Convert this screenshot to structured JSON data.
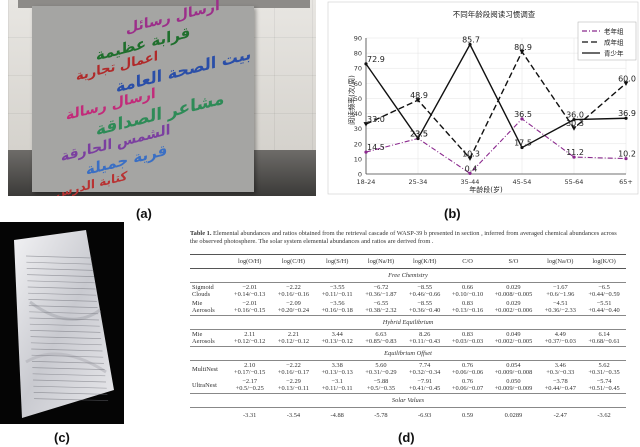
{
  "captions": {
    "a": "(a)",
    "b": "(b)",
    "c": "(c)",
    "d": "(d)"
  },
  "panel_a": {
    "lines": [
      {
        "text": "ارسال رسائل",
        "color": "#9c2f8a"
      },
      {
        "text": "قرابة عظيمة",
        "color": "#1f6f2d"
      },
      {
        "text": "اعمال تجارية",
        "color": "#b02a2a"
      },
      {
        "text": "بيت الصحة العامة",
        "color": "#2a4ea8"
      },
      {
        "text": "ارسال رسالة",
        "color": "#c22b7a"
      },
      {
        "text": "مشاعر الصداقة",
        "color": "#2e8b57"
      },
      {
        "text": "الشمس الحارقة",
        "color": "#7b3fa0"
      },
      {
        "text": "قرية جميلة",
        "color": "#3a6fc4"
      },
      {
        "text": "كتابة الدرس",
        "color": "#b83232"
      }
    ]
  },
  "chart_data": {
    "type": "line",
    "title": "不同年龄段阅读习惯调查",
    "xlabel": "年龄段(岁)",
    "ylabel": "阅读频率(次/周)",
    "categories": [
      "18-24",
      "25-34",
      "35-44",
      "45-54",
      "55-64",
      "65+"
    ],
    "ylim": [
      0,
      90
    ],
    "yticks": [
      0,
      10,
      20,
      30,
      40,
      50,
      60,
      70,
      80,
      90
    ],
    "series": [
      {
        "name": "老年组",
        "style": "dashdot",
        "color": "#8b2a8e",
        "values": [
          14.5,
          23.5,
          0.4,
          36.5,
          11.2,
          10.2
        ]
      },
      {
        "name": "成年组",
        "style": "dashed",
        "color": "#111111",
        "values": [
          33.0,
          48.9,
          10.3,
          80.9,
          30.3,
          60.0
        ]
      },
      {
        "name": "青少年",
        "style": "solid",
        "color": "#111111",
        "values": [
          72.9,
          23.5,
          85.7,
          17.5,
          36.0,
          36.9
        ]
      }
    ],
    "data_labels": [
      "72.9",
      "48.9",
      "85.7",
      "80.9",
      "60.0",
      "33.0",
      "23.5",
      "36.5",
      "36.0",
      "36.9",
      "30.3",
      "14.5",
      "10.3",
      "0.4",
      "11.2",
      "10.2"
    ],
    "legend_position": "top-right"
  },
  "panel_d": {
    "caption_bold": "Table 1.",
    "caption_text": "Elemental abundances and ratios obtained from the retrieval cascade of WASP-39 b presented in section , inferred from averaged chemical abundances across the observed photosphere. The solar system elemental abundances and ratios are derived from .",
    "headers": [
      "",
      "log(O/H)",
      "log(C/H)",
      "log(S/H)",
      "log(Na/H)",
      "log(K/H)",
      "C/O",
      "S/O",
      "log(Na/O)",
      "log(K/O)"
    ],
    "sections": [
      {
        "title": "Free Chemistry",
        "rows": [
          [
            "Sigmoid Clouds",
            "−2.01 +0.14/−0.13",
            "−2.22 +0.16/−0.16",
            "−3.55 +0.11/−0.11",
            "−6.72 +0.36/−1.87",
            "−8.55 +0.46/−0.66",
            "0.66 +0.10/−0.10",
            "0.029 +0.008/−0.005",
            "−1.67 +0.6/−1.96",
            "−6.5 +0.44/−0.59"
          ],
          [
            "Mie Aerosols",
            "−2.01 +0.16/−0.15",
            "−2.09 +0.20/−0.24",
            "−3.56 +0.16/−0.18",
            "−6.55 +0.38/−2.32",
            "−8.55 +0.36/−0.40",
            "0.83 +0.13/−0.16",
            "0.029 +0.002/−0.006",
            "−4.51 +0.36/−2.33",
            "−5.51 +0.44/−0.40"
          ]
        ]
      },
      {
        "title": "Hybrid Equilibrium",
        "rows": [
          [
            "Mie Aerosols",
            "2.11 +0.12/−0.12",
            "2.21 +0.12/−0.12",
            "3.44 +0.13/−0.12",
            "6.63 +0.85/−0.83",
            "8.26 +0.11/−0.43",
            "0.83 +0.03/−0.03",
            "0.049 +0.002/−0.005",
            "4.49 +0.37/−0.03",
            "6.14 +0.68/−0.61"
          ]
        ]
      },
      {
        "title": "Equilibrium Offset",
        "rows": [
          [
            "MultiNest",
            "2.10 +0.17/−0.15",
            "−2.22 +0.16/−0.17",
            "3.38 +0.13/−0.13",
            "5.60 +0.31/−0.29",
            "7.74 +0.32/−0.34",
            "0.76 +0.06/−0.06",
            "0.054 +0.009/−0.008",
            "3.46 +0.3/−0.33",
            "5.62 +0.31/−0.35"
          ],
          [
            "UltraNest",
            "−2.17 +0.5/−0.25",
            "−2.29 +0.13/−0.11",
            "−3.1 +0.11/−0.11",
            "−5.88 +0.5/−0.35",
            "−7.91 +0.41/−0.45",
            "0.76 +0.06/−0.07",
            "0.050 +0.009/−0.009",
            "−3.78 +0.44/−0.47",
            "−5.74 +0.51/−0.45"
          ]
        ]
      },
      {
        "title": "Solar Values",
        "rows": [
          [
            "",
            "-3.31",
            "-3.54",
            "-4.88",
            "-5.78",
            "-6.93",
            "0.59",
            "0.0289",
            "-2.47",
            "-3.62"
          ]
        ]
      }
    ]
  }
}
